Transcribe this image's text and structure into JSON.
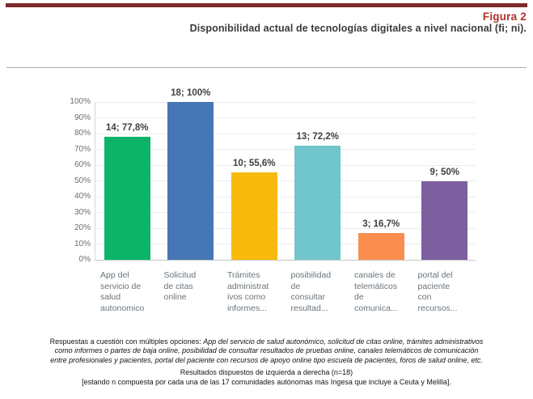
{
  "header": {
    "figure_label": "Figura 2",
    "title": "Disponibilidad actual de tecnologías digitales a nivel nacional (fi; ni)."
  },
  "chart_data": {
    "type": "bar",
    "title": "Disponibilidad actual de tecnologías digitales a nivel nacional (fi; ni).",
    "categories": [
      "App del\nservicio de\nsalud\nautonomico",
      "Solicitud\nde citas\nonline",
      "Trámites\nadministrat\nivos como\ninformes...",
      "posibilidad\nde\nconsultar\nresultad...",
      "canales de\ntelemáticos\nde\ncomunica...",
      "portal del\npaciente\ncon\nrecursos..."
    ],
    "counts": [
      14,
      18,
      10,
      13,
      3,
      9
    ],
    "values": [
      77.8,
      100,
      55.6,
      72.2,
      16.7,
      50
    ],
    "value_labels": [
      "14; 77,8%",
      "18; 100%",
      "10; 55,6%",
      "13; 72,2%",
      "3; 16,7%",
      "9; 50%"
    ],
    "bar_colors": [
      "#0cb46a",
      "#4676b5",
      "#f8ba0d",
      "#70c6cc",
      "#fb8d4e",
      "#7c5f9e"
    ],
    "xlabel": "",
    "ylabel": "",
    "ylim": [
      0,
      100
    ],
    "ytick_step": 10,
    "ytick_suffix": "%",
    "grid": true,
    "legend": "none"
  },
  "footnote": {
    "lead": "Respuestas a cuestión con múltiples opciones:",
    "options_italic": "App del servicio de salud autonómico, solicitud de citas online, trámites administrativos como informes o partes de baja online, posibilidad de consultar resultados de pruebas online, canales telemáticos de comunicación entre profesionales y pacientes, portal del paciente con recursos de apoyo online tipo escuela de pacientes, foros de salud online, etc.",
    "order": "Resultados dispuestos de izquierda a derecha (n=18)",
    "n_detail": "[estando n compuesta por cada una de las 17 comunidades autónomas más Ingesa que incluye a Ceuta y Melilla]."
  },
  "colors": {
    "top_rule": "#7d2b2b",
    "figure_label_text": "#b0322c",
    "title_text": "#3a3a3a",
    "gridline": "#ececec",
    "axis_text": "#6d6d6d",
    "category_text": "#6a757c",
    "value_label_text": "#3f3f3f"
  }
}
